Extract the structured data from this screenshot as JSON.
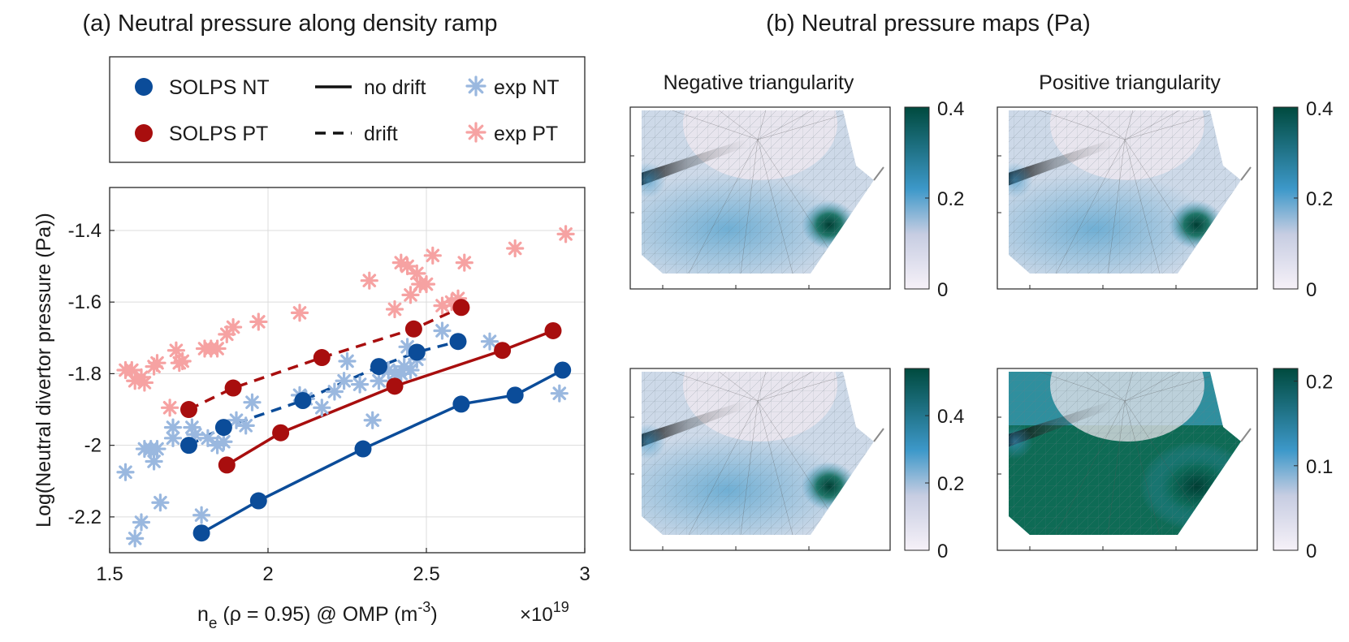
{
  "panel_a_title": "(a) Neutral pressure along density ramp",
  "panel_b_title": "(b) Neutral pressure maps (Pa)",
  "chart_data": [
    {
      "type": "scatter",
      "title": "(a) Neutral pressure along density ramp",
      "xlabel_main": "n",
      "xlabel_sub": "e",
      "xlabel_rest": " (ρ = 0.95) @ OMP (m",
      "xlabel_sup": "-3",
      "xlabel_end": ")",
      "x_multiplier_base": "×10",
      "x_multiplier_exp": "19",
      "ylabel": "Log(Neutral divertor pressure (Pa))",
      "xlim": [
        1.5,
        3.0
      ],
      "ylim": [
        -2.3,
        -1.28
      ],
      "xticks": [
        1.5,
        2,
        2.5,
        3
      ],
      "xtick_labels": [
        "1.5",
        "2",
        "2.5",
        "3"
      ],
      "yticks": [
        -2.2,
        -2,
        -1.8,
        -1.6,
        -1.4
      ],
      "ytick_labels": [
        "-2.2",
        "-2",
        "-1.8",
        "-1.6",
        "-1.4"
      ],
      "grid": true,
      "legend_position": "top",
      "legend": {
        "solps_nt": "SOLPS NT",
        "solps_pt": "SOLPS PT",
        "no_drift": "no drift",
        "drift": "drift",
        "exp_nt": "exp NT",
        "exp_pt": "exp PT"
      },
      "colors": {
        "solps_nt": "#0b4c99",
        "solps_pt": "#a80e0e",
        "exp_nt": "#9ab8df",
        "exp_pt": "#f6a2a2"
      },
      "series": [
        {
          "name": "SOLPS NT",
          "style": "no drift",
          "x": [
            1.79,
            1.97,
            2.3,
            2.61,
            2.78,
            2.93
          ],
          "y": [
            -2.245,
            -2.155,
            -2.01,
            -1.885,
            -1.86,
            -1.79
          ]
        },
        {
          "name": "SOLPS NT",
          "style": "drift",
          "x": [
            1.75,
            1.86,
            2.11,
            2.35,
            2.47,
            2.6
          ],
          "y": [
            -2.0,
            -1.95,
            -1.875,
            -1.78,
            -1.74,
            -1.71
          ]
        },
        {
          "name": "SOLPS PT",
          "style": "no drift",
          "x": [
            1.87,
            2.04,
            2.4,
            2.74,
            2.9
          ],
          "y": [
            -2.055,
            -1.965,
            -1.835,
            -1.735,
            -1.68
          ]
        },
        {
          "name": "SOLPS PT",
          "style": "drift",
          "x": [
            1.75,
            1.89,
            2.17,
            2.46,
            2.61
          ],
          "y": [
            -1.9,
            -1.84,
            -1.755,
            -1.675,
            -1.615
          ]
        },
        {
          "name": "exp NT",
          "x": [
            1.55,
            1.58,
            1.6,
            1.61,
            1.63,
            1.64,
            1.65,
            1.66,
            1.7,
            1.7,
            1.76,
            1.77,
            1.79,
            1.81,
            1.84,
            1.86,
            1.9,
            1.93,
            1.95,
            2.1,
            2.12,
            2.17,
            2.21,
            2.24,
            2.25,
            2.29,
            2.33,
            2.35,
            2.38,
            2.4,
            2.42,
            2.43,
            2.44,
            2.45,
            2.47,
            2.55,
            2.7,
            2.92
          ],
          "y": [
            -2.075,
            -2.26,
            -2.215,
            -2.01,
            -2.01,
            -2.045,
            -2.01,
            -2.16,
            -1.98,
            -1.95,
            -1.95,
            -1.97,
            -2.195,
            -1.98,
            -2.0,
            -1.99,
            -1.93,
            -1.945,
            -1.88,
            -1.86,
            -1.87,
            -1.895,
            -1.85,
            -1.82,
            -1.765,
            -1.83,
            -1.93,
            -1.82,
            -1.79,
            -1.8,
            -1.8,
            -1.78,
            -1.725,
            -1.79,
            -1.76,
            -1.68,
            -1.71,
            -1.855
          ]
        },
        {
          "name": "exp PT",
          "x": [
            1.55,
            1.57,
            1.58,
            1.6,
            1.61,
            1.64,
            1.65,
            1.69,
            1.71,
            1.72,
            1.73,
            1.8,
            1.82,
            1.84,
            1.87,
            1.89,
            1.97,
            2.1,
            2.32,
            2.4,
            2.42,
            2.44,
            2.45,
            2.47,
            2.48,
            2.5,
            2.52,
            2.55,
            2.58,
            2.6,
            2.62,
            2.78,
            2.94
          ],
          "y": [
            -1.79,
            -1.79,
            -1.82,
            -1.81,
            -1.825,
            -1.78,
            -1.77,
            -1.895,
            -1.735,
            -1.77,
            -1.765,
            -1.73,
            -1.73,
            -1.73,
            -1.69,
            -1.67,
            -1.655,
            -1.63,
            -1.54,
            -1.62,
            -1.49,
            -1.5,
            -1.58,
            -1.52,
            -1.55,
            -1.55,
            -1.47,
            -1.61,
            -1.6,
            -1.59,
            -1.49,
            -1.45,
            -1.41
          ]
        }
      ]
    },
    {
      "type": "heatmap",
      "title": "(b) Neutral pressure maps (Pa)",
      "column_titles": [
        "Negative triangularity",
        "Positive triangularity"
      ],
      "colormap": [
        "#f6f1f8",
        "#3d98c9",
        "#004a3e"
      ],
      "maps": [
        {
          "column": "Negative triangularity",
          "row": "top",
          "colorbar_ticks": [
            "0",
            "0.2",
            "0.4"
          ],
          "vmax": 0.4
        },
        {
          "column": "Positive triangularity",
          "row": "top",
          "colorbar_ticks": [
            "0",
            "0.2",
            "0.4"
          ],
          "vmax": 0.4
        },
        {
          "column": "Negative triangularity",
          "row": "bottom",
          "colorbar_ticks": [
            "0",
            "0.2",
            "0.4"
          ],
          "vmax": 0.54
        },
        {
          "column": "Positive triangularity",
          "row": "bottom",
          "colorbar_ticks": [
            "0",
            "0.1",
            "0.2"
          ],
          "vmax": 0.215
        }
      ]
    }
  ]
}
